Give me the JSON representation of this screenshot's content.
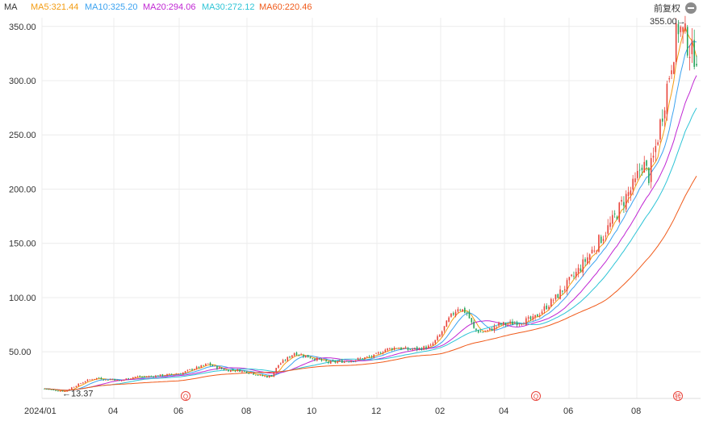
{
  "header": {
    "indicator": "MA",
    "ma": [
      {
        "text": "MA5:321.44",
        "color": "#f39c12"
      },
      {
        "text": "MA10:325.20",
        "color": "#3aa2f0"
      },
      {
        "text": "MA20:294.06",
        "color": "#c026d3"
      },
      {
        "text": "MA30:272.12",
        "color": "#2ec4d6"
      },
      {
        "text": "MA60:220.46",
        "color": "#f05a1a"
      }
    ],
    "adjust_label": "前复权"
  },
  "chart_data": {
    "type": "candlestick",
    "x_ticks": [
      "2024/01",
      "04",
      "06",
      "08",
      "10",
      "12",
      "02",
      "04",
      "06",
      "08"
    ],
    "y_ticks": [
      "350.00",
      "300.00",
      "250.00",
      "200.00",
      "150.00",
      "100.00",
      "50.00"
    ],
    "ylim": [
      7,
      358
    ],
    "annotations": {
      "high": "355.00→",
      "low": "←13.37"
    },
    "event_markers": [
      "Q",
      "Q",
      "转"
    ],
    "colors": {
      "up": "#e8433a",
      "down": "#27a35a",
      "grid": "#ececec"
    },
    "close_trend": [
      [
        0,
        16
      ],
      [
        3,
        15
      ],
      [
        6,
        14
      ],
      [
        9,
        13.5
      ],
      [
        12,
        17
      ],
      [
        15,
        20
      ],
      [
        18,
        23
      ],
      [
        21,
        25
      ],
      [
        24,
        26
      ],
      [
        27,
        24
      ],
      [
        30,
        25
      ],
      [
        33,
        23
      ],
      [
        36,
        25
      ],
      [
        40,
        27
      ],
      [
        45,
        27
      ],
      [
        50,
        28
      ],
      [
        55,
        29
      ],
      [
        60,
        30
      ],
      [
        65,
        34
      ],
      [
        70,
        37
      ],
      [
        72,
        39
      ],
      [
        75,
        36
      ],
      [
        80,
        33
      ],
      [
        85,
        33
      ],
      [
        90,
        31
      ],
      [
        95,
        28
      ],
      [
        98,
        27
      ],
      [
        100,
        28
      ],
      [
        103,
        38
      ],
      [
        107,
        44
      ],
      [
        110,
        49
      ],
      [
        115,
        46
      ],
      [
        120,
        43
      ],
      [
        125,
        40
      ],
      [
        130,
        41
      ],
      [
        135,
        42
      ],
      [
        140,
        44
      ],
      [
        145,
        46
      ],
      [
        150,
        52
      ],
      [
        155,
        54
      ],
      [
        160,
        52
      ],
      [
        165,
        53
      ],
      [
        170,
        55
      ],
      [
        174,
        65
      ],
      [
        178,
        80
      ],
      [
        182,
        91
      ],
      [
        186,
        86
      ],
      [
        189,
        71
      ],
      [
        192,
        68
      ],
      [
        196,
        70
      ],
      [
        200,
        75
      ],
      [
        205,
        76
      ],
      [
        210,
        78
      ],
      [
        215,
        80
      ],
      [
        220,
        90
      ],
      [
        225,
        100
      ],
      [
        230,
        112
      ],
      [
        235,
        125
      ],
      [
        240,
        140
      ],
      [
        245,
        155
      ],
      [
        250,
        170
      ],
      [
        255,
        190
      ],
      [
        260,
        205
      ],
      [
        263,
        225
      ],
      [
        266,
        212
      ],
      [
        268,
        228
      ],
      [
        271,
        260
      ],
      [
        274,
        295
      ],
      [
        277,
        330
      ],
      [
        279,
        350
      ],
      [
        282,
        340
      ],
      [
        285,
        325
      ]
    ]
  }
}
